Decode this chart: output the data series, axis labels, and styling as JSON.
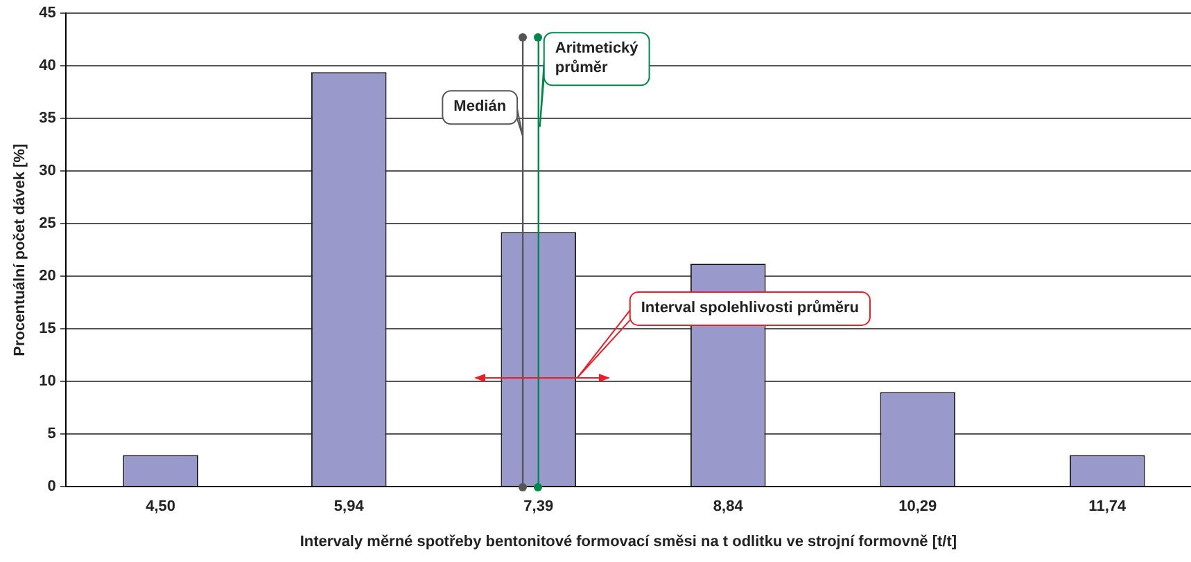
{
  "chart_data": {
    "type": "bar",
    "xlabel": "Intervaly měrné spotřeby bentonitové formovací směsi na t odlitku ve strojní formovně [t/t]",
    "ylabel": "Procentuální počet dávek [%]",
    "x": [
      4.5,
      5.94,
      7.39,
      8.84,
      10.29,
      11.74
    ],
    "series": [
      {
        "values": [
          3.0,
          39.4,
          24.2,
          21.2,
          9.0,
          3.0
        ],
        "color": "#9999cc"
      }
    ],
    "xlim": [
      3.775,
      12.38
    ],
    "xticks": [
      {
        "value": 4.5,
        "label": "4,50"
      },
      {
        "value": 5.94,
        "label": "5,94"
      },
      {
        "value": 7.39,
        "label": "7,39"
      },
      {
        "value": 8.84,
        "label": "8,84"
      },
      {
        "value": 10.29,
        "label": "10,29"
      },
      {
        "value": 11.74,
        "label": "11,74"
      }
    ],
    "ylim": [
      0,
      45
    ],
    "yticks": [
      0,
      5,
      10,
      15,
      20,
      25,
      30,
      35,
      40,
      45
    ],
    "grid": "y",
    "legend": false,
    "ref_lines": [
      {
        "axis": "x",
        "value": 7.27,
        "label": "Medián",
        "color": "#555555"
      },
      {
        "axis": "x",
        "value": 7.39,
        "label": "Aritmetický průměr",
        "color": "#00884a"
      }
    ],
    "annotations": [
      "Interval spolehlivosti průměru"
    ]
  }
}
